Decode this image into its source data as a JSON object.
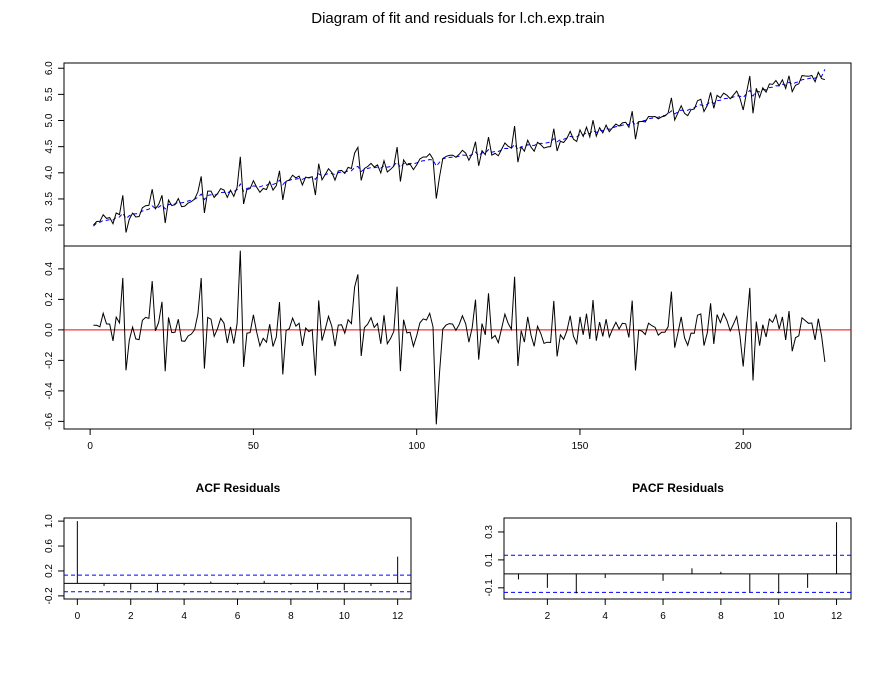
{
  "figure_title": "Diagram of fit and residuals for l.ch.exp.train",
  "colors": {
    "observed": "#000000",
    "fitted": "#0000ff",
    "zero_line": "#ff0000",
    "confidence": "#0000ff",
    "axes": "#000000"
  },
  "chart_data": [
    {
      "id": "fit",
      "type": "line",
      "title": "",
      "xlim": [
        0,
        233
      ],
      "ylim": [
        2.6,
        6.1
      ],
      "yticks": [
        3.0,
        3.5,
        4.0,
        4.5,
        5.0,
        5.5,
        6.0
      ],
      "ytick_labels": [
        "3.0",
        "3.5",
        "4.0",
        "4.5",
        "5.0",
        "5.5",
        "6.0"
      ],
      "series": [
        {
          "name": "",
          "style": "solid",
          "color": "#000000",
          "values": []
        },
        {
          "name": "",
          "style": "dashed",
          "color": "#0000ff",
          "values": []
        }
      ],
      "n_points": 225
    },
    {
      "id": "residuals",
      "type": "line",
      "title": "",
      "xlim": [
        -8,
        233
      ],
      "ylim": [
        -0.65,
        0.55
      ],
      "xticks": [
        0,
        50,
        100,
        150,
        200
      ],
      "xtick_labels": [
        "0",
        "50",
        "100",
        "150",
        "200"
      ],
      "yticks": [
        -0.6,
        -0.4,
        -0.2,
        0.0,
        0.2,
        0.4
      ],
      "ytick_labels": [
        "-0.6",
        "-0.4",
        "-0.2",
        "0.0",
        "0.2",
        "0.4"
      ],
      "zero_line": 0,
      "values": []
    },
    {
      "id": "acf",
      "type": "bar",
      "title": "ACF Residuals",
      "x": [
        0,
        1,
        2,
        3,
        4,
        5,
        6,
        7,
        8,
        9,
        10,
        11,
        12
      ],
      "values": [
        1.0,
        -0.04,
        -0.1,
        -0.12,
        -0.03,
        0.03,
        -0.02,
        0.04,
        -0.02,
        -0.1,
        -0.11,
        -0.04,
        0.43
      ],
      "xlim": [
        -0.5,
        12.5
      ],
      "ylim": [
        -0.25,
        1.05
      ],
      "xticks": [
        0,
        2,
        4,
        6,
        8,
        10,
        12
      ],
      "xtick_labels": [
        "0",
        "2",
        "4",
        "6",
        "8",
        "10",
        "12"
      ],
      "yticks": [
        -0.2,
        0.2,
        0.6,
        1.0
      ],
      "ytick_labels": [
        "-0.2",
        "0.2",
        "0.6",
        "1.0"
      ],
      "ci": 0.133
    },
    {
      "id": "pacf",
      "type": "bar",
      "title": "PACF Residuals",
      "x": [
        1,
        2,
        3,
        4,
        5,
        6,
        7,
        8,
        9,
        10,
        11,
        12
      ],
      "values": [
        -0.04,
        -0.1,
        -0.14,
        -0.03,
        0.0,
        -0.05,
        0.04,
        0.015,
        -0.13,
        -0.14,
        -0.1,
        0.37
      ],
      "xlim": [
        0.5,
        12.5
      ],
      "ylim": [
        -0.18,
        0.4
      ],
      "xticks": [
        2,
        4,
        6,
        8,
        10,
        12
      ],
      "xtick_labels": [
        "2",
        "4",
        "6",
        "8",
        "10",
        "12"
      ],
      "yticks": [
        -0.1,
        0.1,
        0.3
      ],
      "ytick_labels": [
        "-0.1",
        "0.1",
        "0.3"
      ],
      "ci": 0.133
    }
  ]
}
